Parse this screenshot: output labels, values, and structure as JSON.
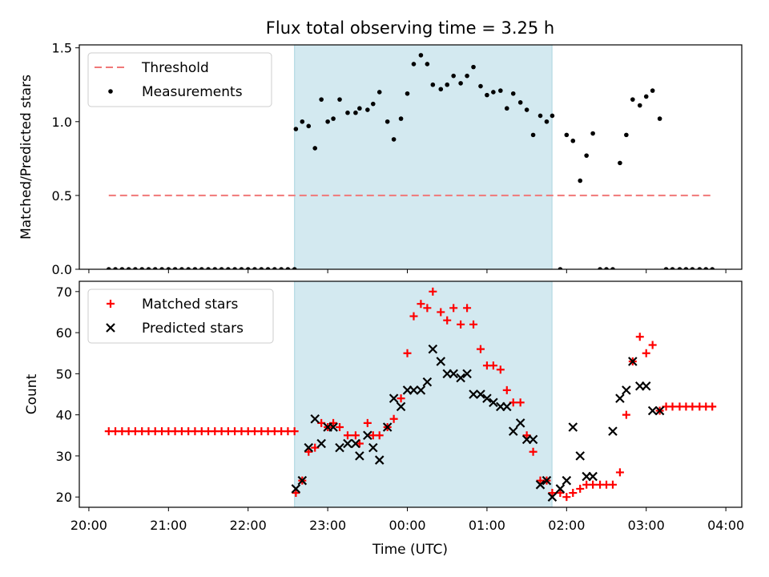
{
  "chart_data": {
    "title": "Flux total observing time = 3.25 h",
    "xlabel": "Time (UTC)",
    "x_ticks": [
      "20:00",
      "21:00",
      "22:00",
      "23:00",
      "00:00",
      "01:00",
      "02:00",
      "03:00",
      "04:00"
    ],
    "x_tick_hours": [
      0,
      1,
      2,
      3,
      4,
      5,
      6,
      7,
      8
    ],
    "x_unit": "hours after 20:00 UTC",
    "xlim": [
      -0.12,
      8.2
    ],
    "shaded_region": {
      "x_start": "22:35",
      "x_end": "01:49",
      "color": "#d3e9f0"
    },
    "charts": [
      {
        "type": "scatter",
        "ylabel": "Matched/Predicted stars",
        "ylim": [
          0,
          1.52
        ],
        "y_ticks": [
          "0.0",
          "0.5",
          "1.0",
          "1.5"
        ],
        "y_tick_values": [
          0,
          0.5,
          1.0,
          1.5
        ],
        "legend_position": "top-left",
        "series": [
          {
            "name": "Threshold",
            "kind": "line",
            "style": "dashed",
            "color": "#f07878",
            "x": [
              0.25,
              7.85
            ],
            "y": [
              0.5,
              0.5
            ]
          },
          {
            "name": "Measurements",
            "kind": "point",
            "color": "#000000",
            "x": [
              0.25,
              0.333,
              0.417,
              0.5,
              0.583,
              0.667,
              0.75,
              0.833,
              0.917,
              1.0,
              1.083,
              1.167,
              1.25,
              1.333,
              1.417,
              1.5,
              1.583,
              1.667,
              1.75,
              1.833,
              1.917,
              2.0,
              2.083,
              2.167,
              2.25,
              2.333,
              2.417,
              2.5,
              2.583,
              2.6,
              2.68,
              2.76,
              2.84,
              2.92,
              3.0,
              3.07,
              3.15,
              3.25,
              3.35,
              3.4,
              3.5,
              3.57,
              3.65,
              3.75,
              3.83,
              3.92,
              4.0,
              4.08,
              4.17,
              4.25,
              4.32,
              4.42,
              4.5,
              4.58,
              4.67,
              4.75,
              4.83,
              4.92,
              5.0,
              5.08,
              5.17,
              5.25,
              5.33,
              5.42,
              5.5,
              5.58,
              5.67,
              5.75,
              5.82,
              5.92,
              6.0,
              6.08,
              6.17,
              6.25,
              6.33,
              6.42,
              6.5,
              6.58,
              6.67,
              6.75,
              6.83,
              6.92,
              7.0,
              7.08,
              7.17,
              7.25,
              7.33,
              7.42,
              7.5,
              7.58,
              7.67,
              7.75,
              7.83
            ],
            "y": [
              0,
              0,
              0,
              0,
              0,
              0,
              0,
              0,
              0,
              0,
              0,
              0,
              0,
              0,
              0,
              0,
              0,
              0,
              0,
              0,
              0,
              0,
              0,
              0,
              0,
              0,
              0,
              0,
              0,
              0.95,
              1.0,
              0.97,
              0.82,
              1.15,
              1.0,
              1.02,
              1.15,
              1.06,
              1.06,
              1.09,
              1.08,
              1.12,
              1.2,
              1.0,
              0.88,
              1.02,
              1.19,
              1.39,
              1.45,
              1.39,
              1.25,
              1.22,
              1.25,
              1.31,
              1.26,
              1.31,
              1.37,
              1.24,
              1.18,
              1.2,
              1.21,
              1.09,
              1.19,
              1.13,
              1.08,
              0.91,
              1.04,
              1.0,
              1.04,
              0,
              0.91,
              0.87,
              0.6,
              0.77,
              0.92,
              0,
              0,
              0,
              0.72,
              0.91,
              1.15,
              1.11,
              1.17,
              1.21,
              1.02,
              0,
              0,
              0,
              0,
              0,
              0,
              0,
              0
            ]
          }
        ]
      },
      {
        "type": "scatter",
        "ylabel": "Count",
        "ylim": [
          17.5,
          72.5
        ],
        "y_ticks": [
          "20",
          "30",
          "40",
          "50",
          "60",
          "70"
        ],
        "y_tick_values": [
          20,
          30,
          40,
          50,
          60,
          70
        ],
        "legend_position": "top-left",
        "series": [
          {
            "name": "Matched stars",
            "kind": "plus",
            "color": "#ff0000",
            "x": [
              0.25,
              0.333,
              0.417,
              0.5,
              0.583,
              0.667,
              0.75,
              0.833,
              0.917,
              1.0,
              1.083,
              1.167,
              1.25,
              1.333,
              1.417,
              1.5,
              1.583,
              1.667,
              1.75,
              1.833,
              1.917,
              2.0,
              2.083,
              2.167,
              2.25,
              2.333,
              2.417,
              2.5,
              2.583,
              2.6,
              2.68,
              2.76,
              2.84,
              2.92,
              3.0,
              3.07,
              3.15,
              3.25,
              3.35,
              3.4,
              3.5,
              3.57,
              3.65,
              3.75,
              3.83,
              3.92,
              4.0,
              4.08,
              4.17,
              4.25,
              4.32,
              4.42,
              4.5,
              4.58,
              4.67,
              4.75,
              4.83,
              4.92,
              5.0,
              5.08,
              5.17,
              5.25,
              5.33,
              5.42,
              5.5,
              5.58,
              5.67,
              5.75,
              5.82,
              5.92,
              6.0,
              6.08,
              6.17,
              6.25,
              6.33,
              6.42,
              6.5,
              6.58,
              6.67,
              6.75,
              6.83,
              6.92,
              7.0,
              7.08,
              7.17,
              7.25,
              7.33,
              7.42,
              7.5,
              7.58,
              7.67,
              7.75,
              7.83
            ],
            "y": [
              36,
              36,
              36,
              36,
              36,
              36,
              36,
              36,
              36,
              36,
              36,
              36,
              36,
              36,
              36,
              36,
              36,
              36,
              36,
              36,
              36,
              36,
              36,
              36,
              36,
              36,
              36,
              36,
              36,
              21,
              24,
              31,
              32,
              38,
              37,
              38,
              37,
              35,
              35,
              33,
              38,
              35,
              35,
              37,
              39,
              44,
              55,
              64,
              67,
              66,
              70,
              65,
              63,
              66,
              62,
              66,
              62,
              56,
              52,
              52,
              51,
              46,
              43,
              43,
              35,
              31,
              24,
              24,
              21,
              21,
              20,
              21,
              22,
              23,
              23,
              23,
              23,
              23,
              26,
              40,
              53,
              59,
              55,
              57,
              41,
              42,
              42,
              42,
              42,
              42,
              42,
              42,
              42
            ]
          },
          {
            "name": "Predicted stars",
            "kind": "cross",
            "color": "#000000",
            "x": [
              2.6,
              2.68,
              2.76,
              2.84,
              2.92,
              3.0,
              3.07,
              3.15,
              3.25,
              3.35,
              3.4,
              3.5,
              3.57,
              3.65,
              3.75,
              3.83,
              3.92,
              4.0,
              4.08,
              4.17,
              4.25,
              4.32,
              4.42,
              4.5,
              4.58,
              4.67,
              4.75,
              4.83,
              4.92,
              5.0,
              5.08,
              5.17,
              5.25,
              5.33,
              5.42,
              5.5,
              5.58,
              5.67,
              5.75,
              5.82,
              5.92,
              6.0,
              6.08,
              6.17,
              6.25,
              6.33,
              6.58,
              6.67,
              6.75,
              6.83,
              6.92,
              7.0,
              7.08,
              7.17
            ],
            "y": [
              22,
              24,
              32,
              39,
              33,
              37,
              37,
              32,
              33,
              33,
              30,
              35,
              32,
              29,
              37,
              44,
              42,
              46,
              46,
              46,
              48,
              56,
              53,
              50,
              50,
              49,
              50,
              45,
              45,
              44,
              43,
              42,
              42,
              36,
              38,
              34,
              34,
              23,
              24,
              20,
              22,
              24,
              37,
              30,
              25,
              25,
              36,
              44,
              46,
              53,
              47,
              47,
              41,
              41
            ]
          }
        ]
      }
    ]
  }
}
